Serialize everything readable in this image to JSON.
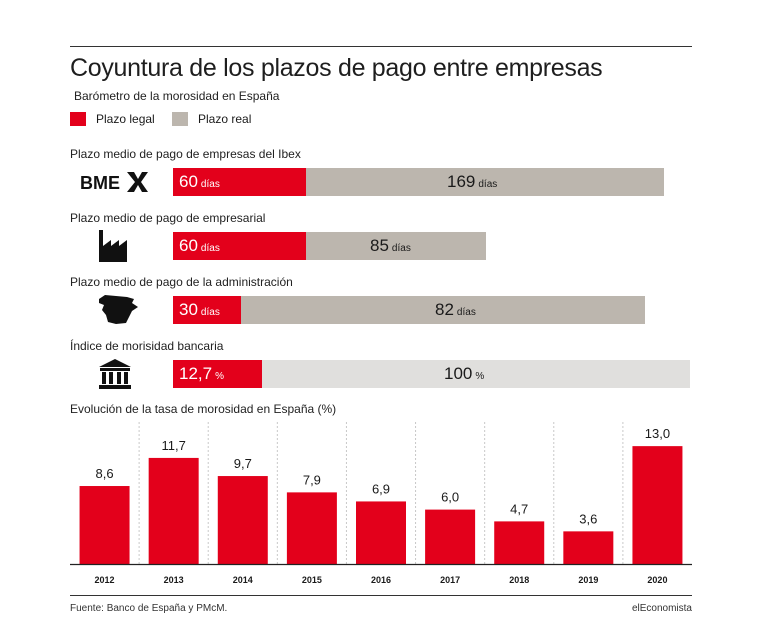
{
  "title": "Coyuntura de los plazos de pago entre empresas",
  "subtitle": "Barómetro de la morosidad en España",
  "legend": [
    {
      "label": "Plazo legal",
      "color": "#e3001b"
    },
    {
      "label": "Plazo real",
      "color": "#bcb6ae"
    }
  ],
  "sections": [
    {
      "label": "Plazo medio de pago de empresas del Ibex",
      "icon": "bme-logo-icon",
      "icon_text": "BME",
      "legal": {
        "value": "60",
        "unit": "días"
      },
      "real": {
        "value": "169",
        "unit": "días"
      },
      "real_color": "#bcb6ae"
    },
    {
      "label": "Plazo medio de pago de empresarial",
      "icon": "factory-icon",
      "legal": {
        "value": "60",
        "unit": "días"
      },
      "real": {
        "value": "85",
        "unit": "días"
      },
      "real_color": "#bcb6ae"
    },
    {
      "label": "Plazo medio de pago de la administración",
      "icon": "spain-map-icon",
      "legal": {
        "value": "30",
        "unit": "días"
      },
      "real": {
        "value": "82",
        "unit": "días"
      },
      "real_color": "#bcb6ae"
    },
    {
      "label": "Índice de morisidad bancaria",
      "icon": "bank-icon",
      "legal": {
        "value": "12,7",
        "unit": "%"
      },
      "real": {
        "value": "100",
        "unit": "%"
      },
      "real_color": "#e0dfdd"
    }
  ],
  "chart_data": {
    "type": "bar",
    "title": "Evolución de la tasa de morosidad en España (%)",
    "categories": [
      "2012",
      "2013",
      "2014",
      "2015",
      "2016",
      "2017",
      "2018",
      "2019",
      "2020"
    ],
    "values": [
      8.6,
      11.7,
      9.7,
      7.9,
      6.9,
      6.0,
      4.7,
      3.6,
      13.0
    ],
    "labels": [
      "8,6",
      "11,7",
      "9,7",
      "7,9",
      "6,9",
      "6,0",
      "4,7",
      "3,6",
      "13,0"
    ],
    "ylim": [
      0,
      15
    ],
    "color": "#e3001b",
    "grid": "dashed vertical separators"
  },
  "source": "Fuente: Banco de España y PMcM.",
  "brand": "elEconomista"
}
